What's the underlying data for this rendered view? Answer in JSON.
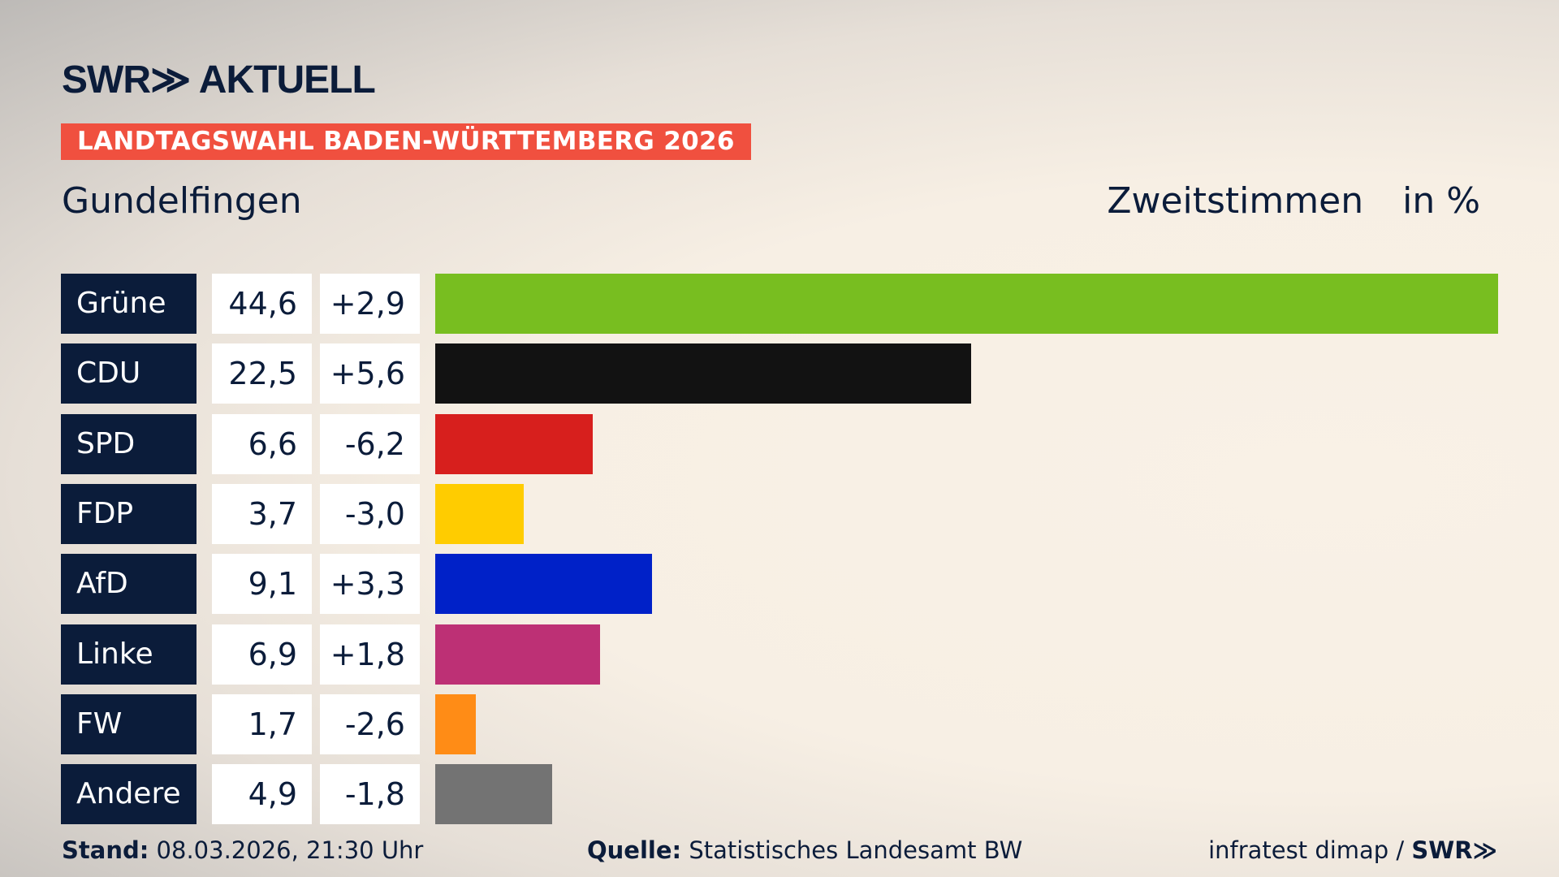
{
  "header": {
    "logo": "SWR≫ AKTUELL",
    "banner": "LANDTAGSWAHL BADEN-WÜRTTEMBERG 2026",
    "place": "Gundelfingen",
    "metric": "Zweitstimmen",
    "unit": "in %"
  },
  "chart_data": {
    "type": "bar",
    "orientation": "horizontal",
    "xlim": [
      0,
      44.6
    ],
    "categories": [
      "Grüne",
      "CDU",
      "SPD",
      "FDP",
      "AfD",
      "Linke",
      "FW",
      "Andere"
    ],
    "values": [
      44.6,
      22.5,
      6.6,
      3.7,
      9.1,
      6.9,
      1.7,
      4.9
    ],
    "value_labels": [
      "44,6",
      "22,5",
      "6,6",
      "3,7",
      "9,1",
      "6,9",
      "1,7",
      "4,9"
    ],
    "diff_labels": [
      "+2,9",
      "+5,6",
      "-6,2",
      "-3,0",
      "+3,3",
      "+1,8",
      "-2,6",
      "-1,8"
    ],
    "colors": [
      "#78be20",
      "#121212",
      "#d71f1d",
      "#ffcc00",
      "#0021c8",
      "#bd3075",
      "#ff8c16",
      "#737373"
    ]
  },
  "footer": {
    "stand_label": "Stand:",
    "stand_value": "08.03.2026, 21:30 Uhr",
    "source_label": "Quelle:",
    "source_value": "Statistisches Landesamt BW",
    "credit": "infratest dimap / ",
    "credit_logo": "SWR≫"
  }
}
